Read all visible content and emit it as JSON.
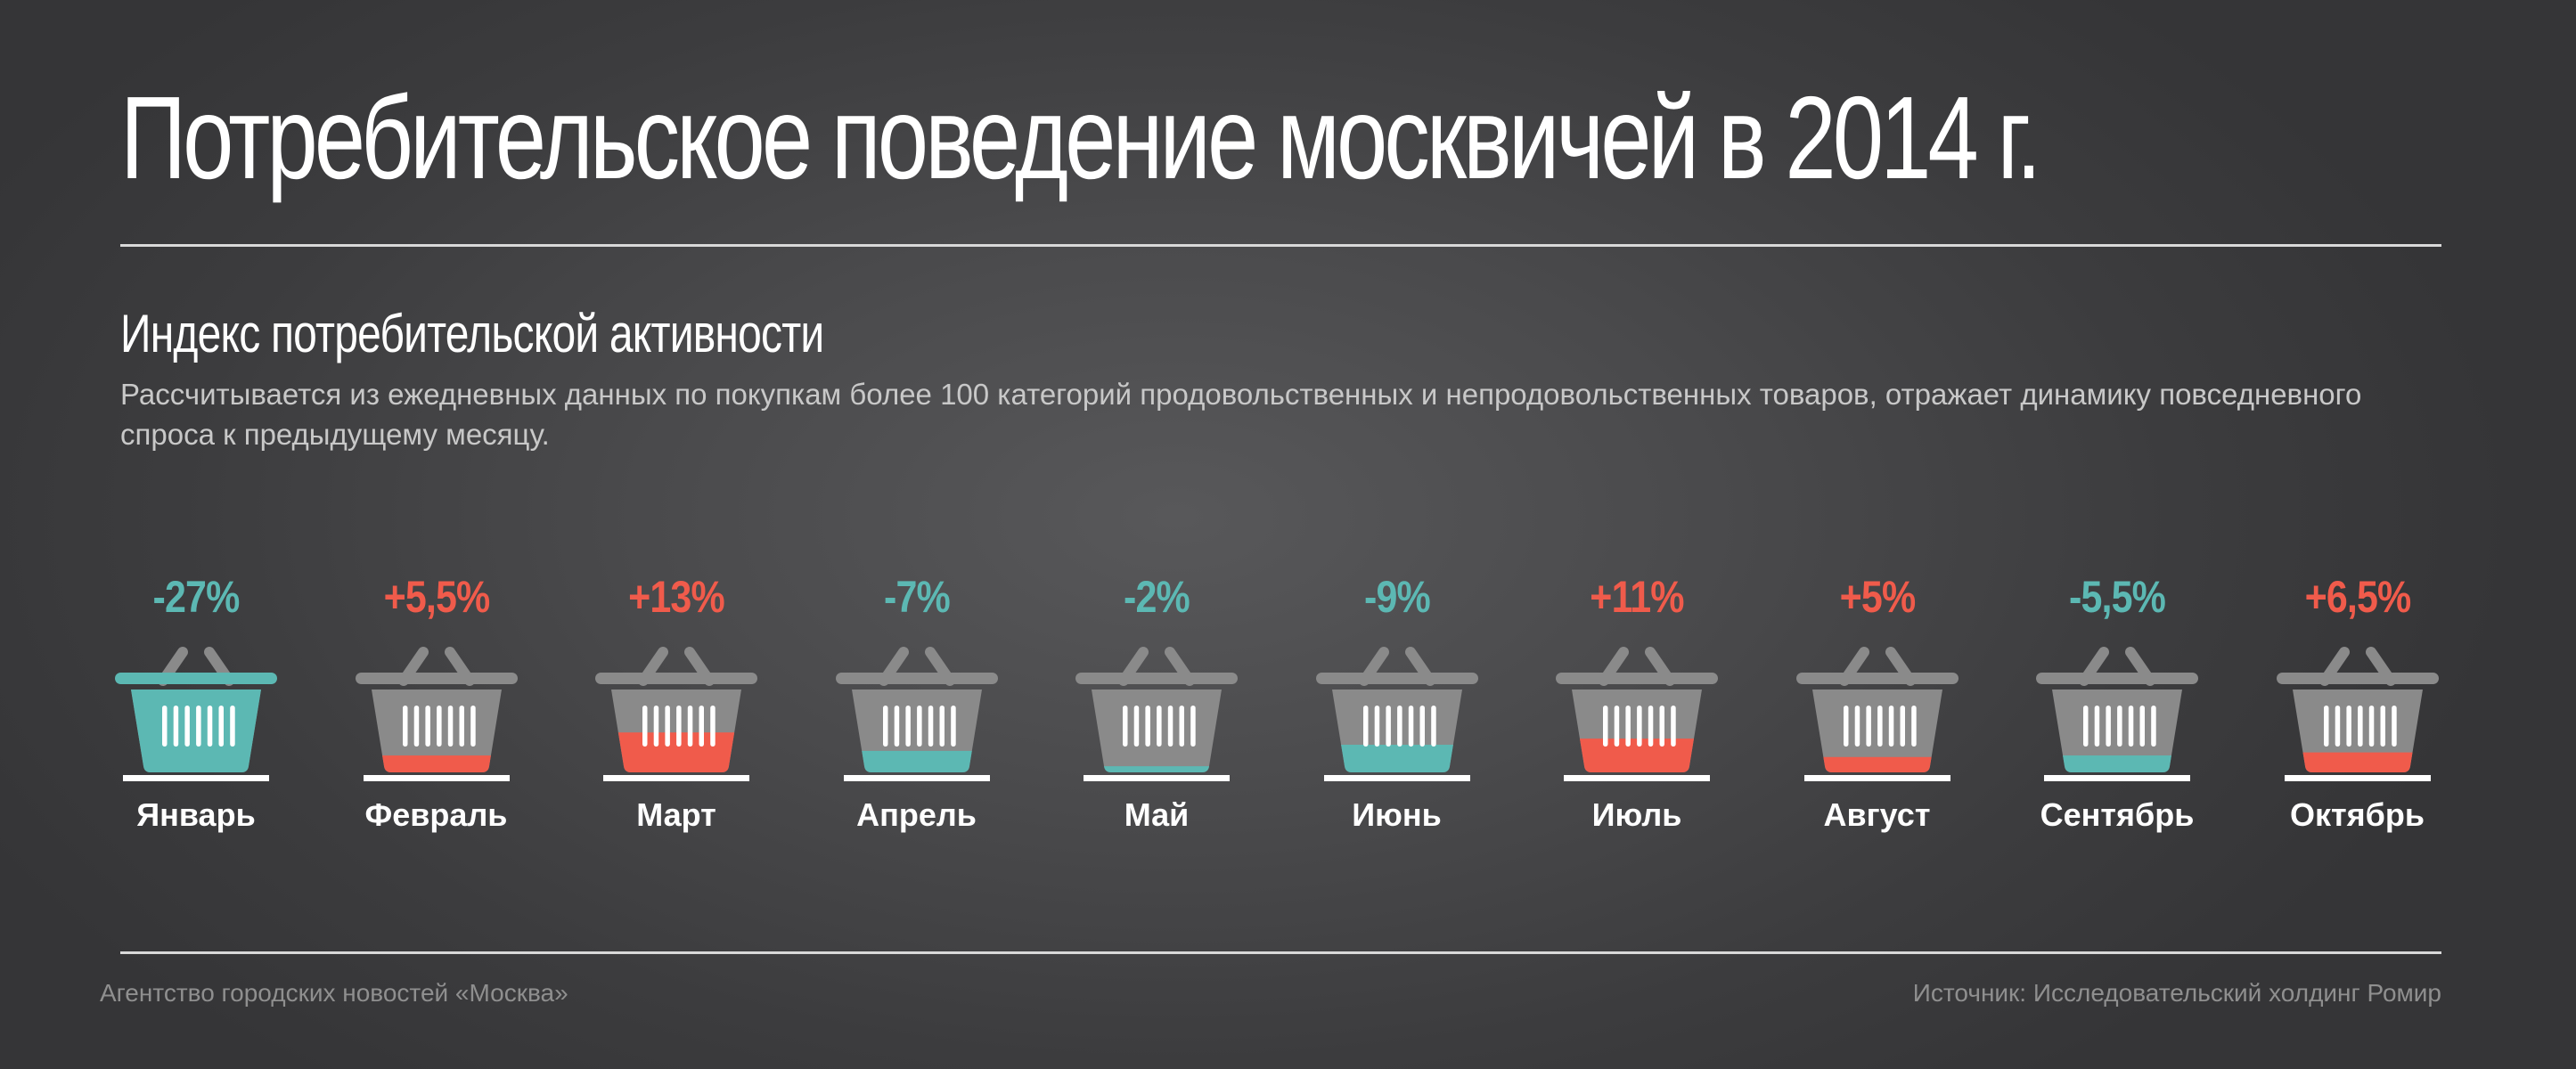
{
  "title": "Потребительское поведение москвичей в 2014 г.",
  "section": {
    "subtitle": "Индекс потребительской активности",
    "description": "Рассчитывается из ежедневных данных по покупкам более 100 категорий продовольственных и непродовольственных товаров, отражает динамику повседневного спроса к предыдущему месяцу."
  },
  "colors": {
    "negative": "#5cb8b3",
    "positive": "#f05b4b",
    "basket": "#8a8a8a"
  },
  "chart_data": {
    "type": "bar",
    "title": "Индекс потребительской активности",
    "categories": [
      "Январь",
      "Февраль",
      "Март",
      "Апрель",
      "Май",
      "Июнь",
      "Июль",
      "Август",
      "Сентябрь",
      "Октябрь"
    ],
    "values": [
      -27,
      5.5,
      13,
      -7,
      -2,
      -9,
      11,
      5,
      -5.5,
      6.5
    ],
    "labels": [
      "-27%",
      "+5,5%",
      "+13%",
      "-7%",
      "-2%",
      "-9%",
      "+11%",
      "+5%",
      "-5,5%",
      "+6,5%"
    ],
    "unit": "%",
    "encoding": "basket fill level"
  },
  "footer": {
    "left": "Агентство городских новостей «Москва»",
    "right": "Источник: Исследовательский холдинг Ромир"
  }
}
